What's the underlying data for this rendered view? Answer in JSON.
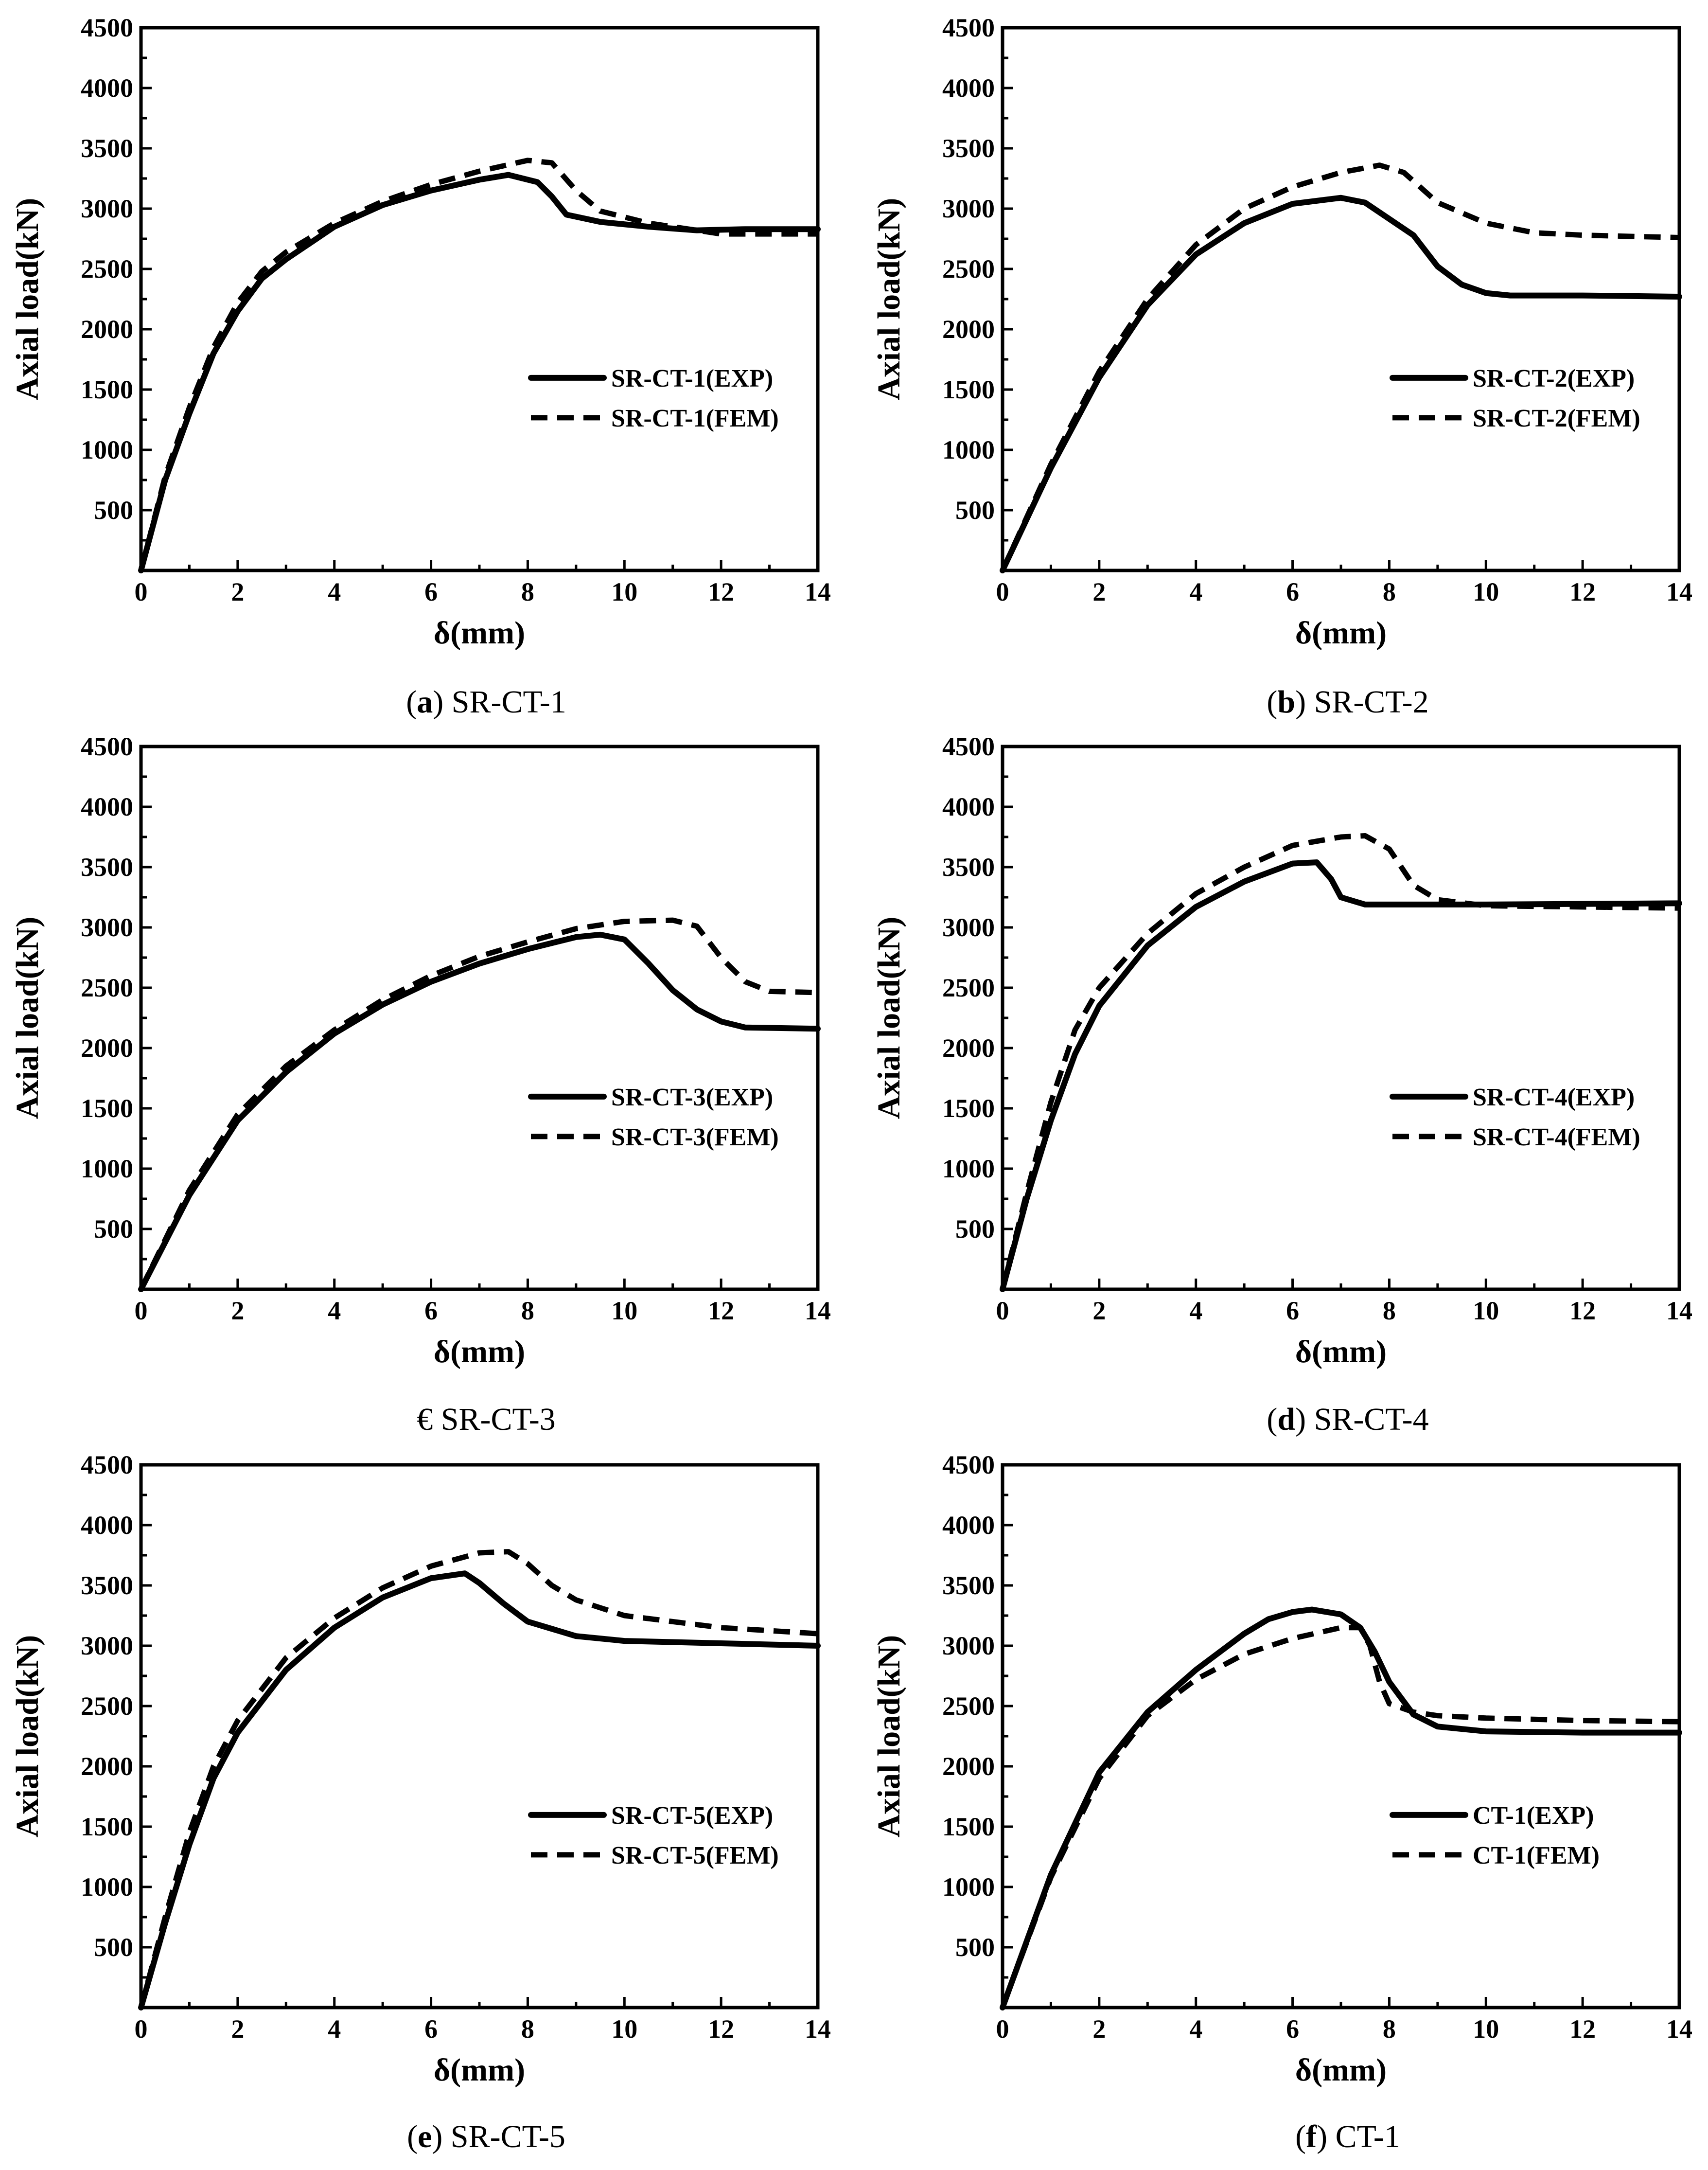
{
  "chart_data": [
    {
      "type": "line",
      "caption_letter": "a",
      "caption_text": " SR-CT-1",
      "xlabel": "δ(mm)",
      "ylabel": "Axial load(kN)",
      "xlim": [
        0,
        14
      ],
      "ylim": [
        0,
        4500
      ],
      "xticks": [
        0,
        2,
        4,
        6,
        8,
        10,
        12,
        14
      ],
      "yticks": [
        500,
        1000,
        1500,
        2000,
        2500,
        3000,
        3500,
        4000,
        4500
      ],
      "legend_position": "center-right",
      "series": [
        {
          "name": "SR-CT-1(EXP)",
          "style": "solid",
          "x": [
            0,
            0.5,
            1,
            1.5,
            2,
            2.5,
            3,
            4,
            5,
            6,
            7,
            7.6,
            8.2,
            8.5,
            8.8,
            9.5,
            10.5,
            11.5,
            12.5,
            14
          ],
          "y": [
            0,
            750,
            1300,
            1800,
            2150,
            2420,
            2580,
            2850,
            3030,
            3150,
            3240,
            3280,
            3220,
            3100,
            2950,
            2890,
            2850,
            2820,
            2830,
            2830
          ]
        },
        {
          "name": "SR-CT-1(FEM)",
          "style": "dashed",
          "x": [
            0,
            0.5,
            1,
            1.5,
            2,
            2.5,
            3,
            4,
            5,
            6,
            7,
            8,
            8.5,
            9,
            9.5,
            10.5,
            11.5,
            12,
            14
          ],
          "y": [
            0,
            780,
            1350,
            1850,
            2220,
            2480,
            2640,
            2880,
            3060,
            3200,
            3310,
            3400,
            3380,
            3150,
            2980,
            2880,
            2820,
            2790,
            2790
          ]
        }
      ]
    },
    {
      "type": "line",
      "caption_letter": "b",
      "caption_text": " SR-CT-2",
      "xlabel": "δ(mm)",
      "ylabel": "Axial load(kN)",
      "xlim": [
        0,
        14
      ],
      "ylim": [
        0,
        4500
      ],
      "xticks": [
        0,
        2,
        4,
        6,
        8,
        10,
        12,
        14
      ],
      "yticks": [
        500,
        1000,
        1500,
        2000,
        2500,
        3000,
        3500,
        4000,
        4500
      ],
      "legend_position": "center-right",
      "series": [
        {
          "name": "SR-CT-2(EXP)",
          "style": "solid",
          "x": [
            0,
            1,
            2,
            3,
            4,
            5,
            6,
            7,
            7.5,
            8.5,
            9,
            9.5,
            10,
            10.5,
            12,
            14
          ],
          "y": [
            0,
            850,
            1600,
            2200,
            2620,
            2880,
            3040,
            3090,
            3050,
            2780,
            2520,
            2370,
            2300,
            2280,
            2280,
            2270
          ]
        },
        {
          "name": "SR-CT-2(FEM)",
          "style": "dashed",
          "x": [
            0,
            1,
            2,
            3,
            4,
            5,
            6,
            7,
            7.8,
            8.3,
            9,
            10,
            11,
            12,
            14
          ],
          "y": [
            0,
            880,
            1650,
            2250,
            2700,
            3000,
            3180,
            3300,
            3360,
            3300,
            3050,
            2880,
            2800,
            2780,
            2760
          ]
        }
      ]
    },
    {
      "type": "line",
      "caption_letter": "€",
      "caption_text": " SR-CT-3",
      "xlabel": "δ(mm)",
      "ylabel": "Axial load(kN)",
      "xlim": [
        0,
        14
      ],
      "ylim": [
        0,
        4500
      ],
      "xticks": [
        0,
        2,
        4,
        6,
        8,
        10,
        12,
        14
      ],
      "yticks": [
        500,
        1000,
        1500,
        2000,
        2500,
        3000,
        3500,
        4000,
        4500
      ],
      "legend_position": "center-right",
      "series": [
        {
          "name": "SR-CT-3(EXP)",
          "style": "solid",
          "x": [
            0,
            1,
            2,
            3,
            4,
            5,
            6,
            7,
            8,
            9,
            9.5,
            10,
            10.5,
            11,
            11.5,
            12,
            12.5,
            14
          ],
          "y": [
            0,
            780,
            1400,
            1800,
            2120,
            2360,
            2550,
            2700,
            2820,
            2920,
            2940,
            2900,
            2700,
            2480,
            2320,
            2220,
            2170,
            2160
          ]
        },
        {
          "name": "SR-CT-3(FEM)",
          "style": "dashed",
          "x": [
            0,
            1,
            2,
            3,
            4,
            5,
            6,
            7,
            8,
            9,
            10,
            11,
            11.5,
            12,
            12.5,
            13,
            14
          ],
          "y": [
            0,
            820,
            1450,
            1850,
            2150,
            2400,
            2600,
            2760,
            2880,
            2990,
            3050,
            3060,
            3010,
            2750,
            2550,
            2470,
            2460
          ]
        }
      ]
    },
    {
      "type": "line",
      "caption_letter": "d",
      "caption_text": " SR-CT-4",
      "xlabel": "δ(mm)",
      "ylabel": "Axial load(kN)",
      "xlim": [
        0,
        14
      ],
      "ylim": [
        0,
        4500
      ],
      "xticks": [
        0,
        2,
        4,
        6,
        8,
        10,
        12,
        14
      ],
      "yticks": [
        500,
        1000,
        1500,
        2000,
        2500,
        3000,
        3500,
        4000,
        4500
      ],
      "legend_position": "center-right",
      "series": [
        {
          "name": "SR-CT-4(EXP)",
          "style": "solid",
          "x": [
            0,
            0.5,
            1,
            1.5,
            2,
            3,
            4,
            5,
            6,
            6.5,
            6.8,
            7,
            7.5,
            8,
            10,
            14
          ],
          "y": [
            0,
            750,
            1400,
            1950,
            2350,
            2850,
            3170,
            3380,
            3530,
            3540,
            3400,
            3250,
            3190,
            3190,
            3190,
            3200
          ]
        },
        {
          "name": "SR-CT-4(FEM)",
          "style": "dashed",
          "x": [
            0,
            0.5,
            1,
            1.5,
            2,
            3,
            4,
            5,
            6,
            7,
            7.5,
            8,
            8.5,
            9,
            10,
            14
          ],
          "y": [
            0,
            800,
            1550,
            2150,
            2500,
            2950,
            3280,
            3500,
            3680,
            3750,
            3760,
            3650,
            3350,
            3230,
            3180,
            3160
          ]
        }
      ]
    },
    {
      "type": "line",
      "caption_letter": "e",
      "caption_text": " SR-CT-5",
      "xlabel": "δ(mm)",
      "ylabel": "Axial load(kN)",
      "xlim": [
        0,
        14
      ],
      "ylim": [
        0,
        4500
      ],
      "xticks": [
        0,
        2,
        4,
        6,
        8,
        10,
        12,
        14
      ],
      "yticks": [
        500,
        1000,
        1500,
        2000,
        2500,
        3000,
        3500,
        4000,
        4500
      ],
      "legend_position": "center-right",
      "series": [
        {
          "name": "SR-CT-5(EXP)",
          "style": "solid",
          "x": [
            0,
            0.5,
            1,
            1.5,
            2,
            3,
            4,
            5,
            6,
            6.7,
            7,
            7.5,
            8,
            9,
            10,
            12,
            14
          ],
          "y": [
            0,
            700,
            1350,
            1900,
            2280,
            2800,
            3150,
            3400,
            3560,
            3600,
            3520,
            3350,
            3200,
            3080,
            3040,
            3020,
            3000
          ]
        },
        {
          "name": "SR-CT-5(FEM)",
          "style": "dashed",
          "x": [
            0,
            0.5,
            1,
            1.5,
            2,
            3,
            4,
            5,
            6,
            7,
            7.6,
            8,
            8.5,
            9,
            10,
            12,
            14
          ],
          "y": [
            0,
            750,
            1450,
            2000,
            2380,
            2900,
            3230,
            3480,
            3660,
            3770,
            3780,
            3680,
            3500,
            3380,
            3250,
            3150,
            3100
          ]
        }
      ]
    },
    {
      "type": "line",
      "caption_letter": "f",
      "caption_text": " CT-1",
      "xlabel": "δ(mm)",
      "ylabel": "Axial load(kN)",
      "xlim": [
        0,
        14
      ],
      "ylim": [
        0,
        4500
      ],
      "xticks": [
        0,
        2,
        4,
        6,
        8,
        10,
        12,
        14
      ],
      "yticks": [
        500,
        1000,
        1500,
        2000,
        2500,
        3000,
        3500,
        4000,
        4500
      ],
      "legend_position": "center-right",
      "series": [
        {
          "name": "CT-1(EXP)",
          "style": "solid",
          "x": [
            0,
            1,
            2,
            3,
            4,
            5,
            5.5,
            6,
            6.4,
            7,
            7.4,
            7.7,
            8,
            8.5,
            9,
            10,
            12,
            14
          ],
          "y": [
            0,
            1100,
            1950,
            2450,
            2800,
            3100,
            3220,
            3280,
            3300,
            3260,
            3150,
            2950,
            2700,
            2430,
            2330,
            2290,
            2280,
            2280
          ]
        },
        {
          "name": "CT-1(FEM)",
          "style": "dashed",
          "x": [
            0,
            1,
            2,
            3,
            4,
            5,
            6,
            7,
            7.4,
            7.6,
            7.8,
            8,
            8.5,
            9,
            10,
            12,
            14
          ],
          "y": [
            0,
            1080,
            1900,
            2420,
            2720,
            2930,
            3060,
            3150,
            3150,
            3000,
            2700,
            2520,
            2450,
            2420,
            2400,
            2380,
            2370
          ]
        }
      ]
    }
  ]
}
